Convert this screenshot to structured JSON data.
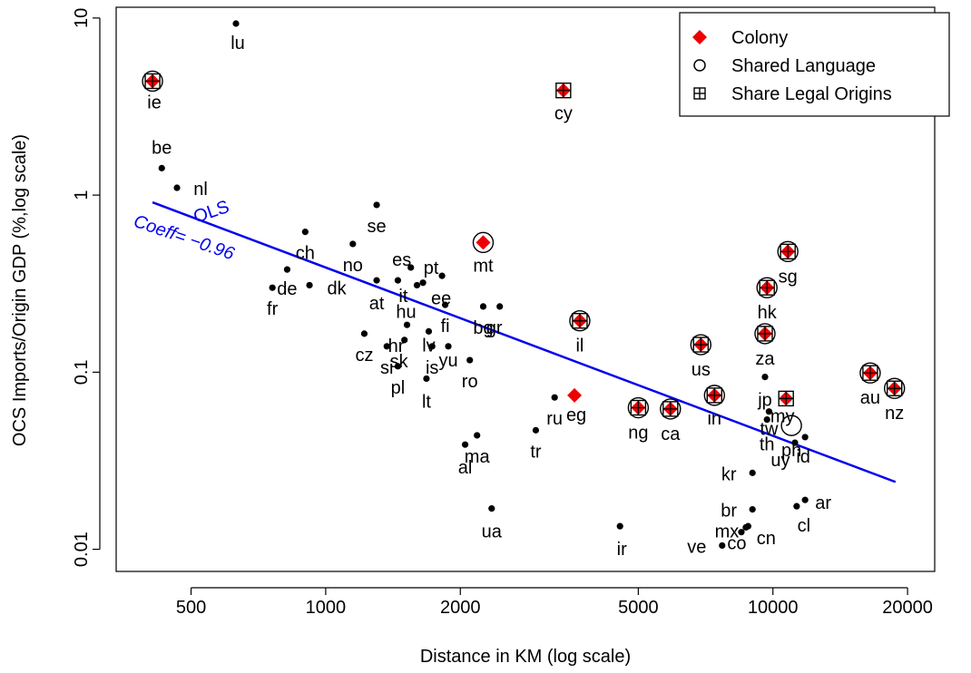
{
  "chart_data": {
    "type": "scatter",
    "title": "",
    "xlabel": "Distance in KM (log scale)",
    "ylabel": "OCS Imports/Origin GDP (%,log scale)",
    "x_scale": "log",
    "y_scale": "log",
    "xlim": [
      340,
      23000
    ],
    "ylim": [
      0.0075,
      11.5
    ],
    "x_ticks": [
      500,
      1000,
      2000,
      5000,
      10000,
      20000
    ],
    "x_tick_labels": [
      "500",
      "1000",
      "2000",
      "5000",
      "10000",
      "20000"
    ],
    "y_ticks": [
      0.01,
      0.1,
      1,
      10
    ],
    "y_tick_labels": [
      "0.01",
      "0.1",
      "1",
      "10"
    ],
    "legend": {
      "position": "top-right",
      "entries": [
        {
          "label": "Colony",
          "marker": "red-diamond"
        },
        {
          "label": "Shared Language",
          "marker": "open-circle"
        },
        {
          "label": "Share Legal Origins",
          "marker": "boxed-plus"
        }
      ]
    },
    "fit_line": {
      "label": "OLS",
      "annotation": "Coeff= −0.96",
      "color": "#0000ee",
      "points": [
        [
          410,
          0.91
        ],
        [
          18800,
          0.024
        ]
      ]
    },
    "points": [
      {
        "code": "lu",
        "x": 630,
        "y": 9.3
      },
      {
        "code": "ie",
        "x": 410,
        "y": 4.4,
        "colony": true,
        "language": true,
        "legal": true
      },
      {
        "code": "cy",
        "x": 3400,
        "y": 3.9,
        "colony": true,
        "legal": true
      },
      {
        "code": "be",
        "x": 430,
        "y": 1.42
      },
      {
        "code": "nl",
        "x": 465,
        "y": 1.1
      },
      {
        "code": "se",
        "x": 1300,
        "y": 0.88
      },
      {
        "code": "ch",
        "x": 900,
        "y": 0.62
      },
      {
        "code": "no",
        "x": 1150,
        "y": 0.53
      },
      {
        "code": "mt",
        "x": 2250,
        "y": 0.54,
        "colony": true,
        "language": true
      },
      {
        "code": "de",
        "x": 820,
        "y": 0.38
      },
      {
        "code": "fr",
        "x": 760,
        "y": 0.3
      },
      {
        "code": "dk",
        "x": 920,
        "y": 0.31
      },
      {
        "code": "at",
        "x": 1300,
        "y": 0.33
      },
      {
        "code": "es",
        "x": 1550,
        "y": 0.39
      },
      {
        "code": "pt",
        "x": 1820,
        "y": 0.35
      },
      {
        "code": "it",
        "x": 1450,
        "y": 0.33
      },
      {
        "code": "hu",
        "x": 1600,
        "y": 0.31
      },
      {
        "code": "ee",
        "x": 1650,
        "y": 0.32
      },
      {
        "code": "bg",
        "x": 2250,
        "y": 0.235
      },
      {
        "code": "gr",
        "x": 2450,
        "y": 0.235
      },
      {
        "code": "fi",
        "x": 1850,
        "y": 0.24
      },
      {
        "code": "il",
        "x": 3700,
        "y": 0.195,
        "colony": true,
        "language": true,
        "legal": true
      },
      {
        "code": "cz",
        "x": 1220,
        "y": 0.165
      },
      {
        "code": "hr",
        "x": 1520,
        "y": 0.185
      },
      {
        "code": "lv",
        "x": 1700,
        "y": 0.17
      },
      {
        "code": "si",
        "x": 1370,
        "y": 0.14
      },
      {
        "code": "sk",
        "x": 1500,
        "y": 0.152
      },
      {
        "code": "is",
        "x": 1730,
        "y": 0.14
      },
      {
        "code": "yu",
        "x": 1880,
        "y": 0.14
      },
      {
        "code": "pl",
        "x": 1450,
        "y": 0.108
      },
      {
        "code": "ro",
        "x": 2100,
        "y": 0.117
      },
      {
        "code": "lt",
        "x": 1680,
        "y": 0.092
      },
      {
        "code": "us",
        "x": 6900,
        "y": 0.143,
        "colony": true,
        "language": true,
        "legal": true
      },
      {
        "code": "za",
        "x": 9600,
        "y": 0.165,
        "colony": true,
        "language": true,
        "legal": true
      },
      {
        "code": "hk",
        "x": 9700,
        "y": 0.3,
        "colony": true,
        "language": true,
        "legal": true
      },
      {
        "code": "sg",
        "x": 10800,
        "y": 0.48,
        "colony": true,
        "language": true,
        "legal": true
      },
      {
        "code": "jp",
        "x": 9600,
        "y": 0.094
      },
      {
        "code": "in",
        "x": 7400,
        "y": 0.074,
        "colony": true,
        "language": true,
        "legal": true
      },
      {
        "code": "ng",
        "x": 5000,
        "y": 0.063,
        "colony": true,
        "language": true,
        "legal": true
      },
      {
        "code": "ca",
        "x": 5900,
        "y": 0.062,
        "colony": true,
        "language": true,
        "legal": true
      },
      {
        "code": "ru",
        "x": 3250,
        "y": 0.072
      },
      {
        "code": "eg",
        "x": 3600,
        "y": 0.074,
        "colony": true
      },
      {
        "code": "my",
        "x": 10700,
        "y": 0.071,
        "colony": true,
        "legal": true
      },
      {
        "code": "tw",
        "x": 9800,
        "y": 0.06
      },
      {
        "code": "th",
        "x": 9700,
        "y": 0.054
      },
      {
        "code": "ph",
        "x": 11000,
        "y": 0.05,
        "language": true
      },
      {
        "code": "uy",
        "x": 11200,
        "y": 0.04
      },
      {
        "code": "id",
        "x": 11800,
        "y": 0.043
      },
      {
        "code": "au",
        "x": 16500,
        "y": 0.099,
        "colony": true,
        "language": true,
        "legal": true
      },
      {
        "code": "nz",
        "x": 18700,
        "y": 0.081,
        "colony": true,
        "language": true,
        "legal": true
      },
      {
        "code": "tr",
        "x": 2950,
        "y": 0.047
      },
      {
        "code": "ma",
        "x": 2180,
        "y": 0.044
      },
      {
        "code": "al",
        "x": 2050,
        "y": 0.039
      },
      {
        "code": "kr",
        "x": 9000,
        "y": 0.027
      },
      {
        "code": "ua",
        "x": 2350,
        "y": 0.017
      },
      {
        "code": "ir",
        "x": 4550,
        "y": 0.0135
      },
      {
        "code": "br",
        "x": 9000,
        "y": 0.0168
      },
      {
        "code": "cl",
        "x": 11300,
        "y": 0.0175
      },
      {
        "code": "ar",
        "x": 11800,
        "y": 0.019
      },
      {
        "code": "mx",
        "x": 8500,
        "y": 0.0125
      },
      {
        "code": "co",
        "x": 8700,
        "y": 0.0133
      },
      {
        "code": "cn",
        "x": 8800,
        "y": 0.0135
      },
      {
        "code": "ve",
        "x": 7700,
        "y": 0.0105
      }
    ],
    "labels": [
      {
        "text": "lu",
        "x": 630,
        "y": 9.3,
        "dx": 2,
        "dy": 28
      },
      {
        "text": "ie",
        "x": 410,
        "y": 4.4,
        "dx": 2,
        "dy": 30
      },
      {
        "text": "cy",
        "x": 3400,
        "y": 3.9,
        "dx": 0,
        "dy": 32
      },
      {
        "text": "be",
        "x": 430,
        "y": 1.42,
        "dx": 0,
        "dy": -16
      },
      {
        "text": "nl",
        "x": 465,
        "y": 1.1,
        "dx": 26,
        "dy": 8
      },
      {
        "text": "se",
        "x": 1300,
        "y": 0.88,
        "dx": 0,
        "dy": 30
      },
      {
        "text": "ch",
        "x": 900,
        "y": 0.62,
        "dx": 0,
        "dy": 30
      },
      {
        "text": "no",
        "x": 1150,
        "y": 0.53,
        "dx": 0,
        "dy": 30
      },
      {
        "text": "mt",
        "x": 2250,
        "y": 0.54,
        "dx": 0,
        "dy": 32
      },
      {
        "text": "de",
        "x": 820,
        "y": 0.38,
        "dx": 0,
        "dy": 28
      },
      {
        "text": "fr",
        "x": 760,
        "y": 0.3,
        "dx": 0,
        "dy": 30
      },
      {
        "text": "dk",
        "x": 920,
        "y": 0.31,
        "dx": 30,
        "dy": 10
      },
      {
        "text": "at",
        "x": 1300,
        "y": 0.33,
        "dx": 0,
        "dy": 32
      },
      {
        "text": "es",
        "x": 1550,
        "y": 0.39,
        "dx": -10,
        "dy": -2
      },
      {
        "text": "pt",
        "x": 1820,
        "y": 0.35,
        "dx": -12,
        "dy": -2
      },
      {
        "text": "it",
        "x": 1450,
        "y": 0.33,
        "dx": 6,
        "dy": 24
      },
      {
        "text": "hu",
        "x": 1600,
        "y": 0.31,
        "dx": -12,
        "dy": 36
      },
      {
        "text": "ee",
        "x": 1650,
        "y": 0.32,
        "dx": 20,
        "dy": 24
      },
      {
        "text": "bg",
        "x": 2250,
        "y": 0.235,
        "dx": 0,
        "dy": 30
      },
      {
        "text": "gr",
        "x": 2450,
        "y": 0.235,
        "dx": -6,
        "dy": 30
      },
      {
        "text": "fi",
        "x": 1850,
        "y": 0.24,
        "dx": 0,
        "dy": 30
      },
      {
        "text": "il",
        "x": 3700,
        "y": 0.195,
        "dx": 0,
        "dy": 34
      },
      {
        "text": "cz",
        "x": 1220,
        "y": 0.165,
        "dx": 0,
        "dy": 30
      },
      {
        "text": "hr",
        "x": 1520,
        "y": 0.185,
        "dx": -12,
        "dy": 30
      },
      {
        "text": "lv",
        "x": 1700,
        "y": 0.17,
        "dx": 0,
        "dy": 22
      },
      {
        "text": "si",
        "x": 1370,
        "y": 0.14,
        "dx": 0,
        "dy": 30
      },
      {
        "text": "sk",
        "x": 1500,
        "y": 0.152,
        "dx": -6,
        "dy": 30
      },
      {
        "text": "is",
        "x": 1730,
        "y": 0.14,
        "dx": 0,
        "dy": 30
      },
      {
        "text": "yu",
        "x": 1880,
        "y": 0.14,
        "dx": 0,
        "dy": 22
      },
      {
        "text": "pl",
        "x": 1450,
        "y": 0.108,
        "dx": 0,
        "dy": 30
      },
      {
        "text": "ro",
        "x": 2100,
        "y": 0.117,
        "dx": 0,
        "dy": 30
      },
      {
        "text": "lt",
        "x": 1680,
        "y": 0.092,
        "dx": 0,
        "dy": 32
      },
      {
        "text": "us",
        "x": 6900,
        "y": 0.143,
        "dx": 0,
        "dy": 34
      },
      {
        "text": "za",
        "x": 9600,
        "y": 0.165,
        "dx": 0,
        "dy": 34
      },
      {
        "text": "hk",
        "x": 9700,
        "y": 0.3,
        "dx": 0,
        "dy": 34
      },
      {
        "text": "sg",
        "x": 10800,
        "y": 0.48,
        "dx": 0,
        "dy": 34
      },
      {
        "text": "jp",
        "x": 9600,
        "y": 0.094,
        "dx": 0,
        "dy": 32
      },
      {
        "text": "in",
        "x": 7400,
        "y": 0.074,
        "dx": 0,
        "dy": 32
      },
      {
        "text": "ng",
        "x": 5000,
        "y": 0.063,
        "dx": 0,
        "dy": 34
      },
      {
        "text": "ca",
        "x": 5900,
        "y": 0.062,
        "dx": 0,
        "dy": 34
      },
      {
        "text": "ru",
        "x": 3250,
        "y": 0.072,
        "dx": 0,
        "dy": 30
      },
      {
        "text": "eg",
        "x": 3600,
        "y": 0.074,
        "dx": 2,
        "dy": 28
      },
      {
        "text": "my",
        "x": 10700,
        "y": 0.071,
        "dx": -4,
        "dy": 26
      },
      {
        "text": "tw",
        "x": 9800,
        "y": 0.06,
        "dx": 0,
        "dy": 26
      },
      {
        "text": "th",
        "x": 9700,
        "y": 0.054,
        "dx": 0,
        "dy": 34
      },
      {
        "text": "ph",
        "x": 11000,
        "y": 0.05,
        "dx": 0,
        "dy": 34
      },
      {
        "text": "uy",
        "x": 11200,
        "y": 0.04,
        "dx": -16,
        "dy": 26
      },
      {
        "text": "id",
        "x": 11800,
        "y": 0.043,
        "dx": -2,
        "dy": 28
      },
      {
        "text": "au",
        "x": 16500,
        "y": 0.099,
        "dx": 0,
        "dy": 34
      },
      {
        "text": "nz",
        "x": 18700,
        "y": 0.081,
        "dx": 0,
        "dy": 34
      },
      {
        "text": "tr",
        "x": 2950,
        "y": 0.047,
        "dx": 0,
        "dy": 30
      },
      {
        "text": "ma",
        "x": 2180,
        "y": 0.044,
        "dx": 0,
        "dy": 30
      },
      {
        "text": "al",
        "x": 2050,
        "y": 0.039,
        "dx": 0,
        "dy": 32
      },
      {
        "text": "kr",
        "x": 9000,
        "y": 0.027,
        "dx": -26,
        "dy": 8
      },
      {
        "text": "ua",
        "x": 2350,
        "y": 0.017,
        "dx": 0,
        "dy": 32
      },
      {
        "text": "ir",
        "x": 4550,
        "y": 0.0135,
        "dx": 2,
        "dy": 32
      },
      {
        "text": "br",
        "x": 9000,
        "y": 0.0168,
        "dx": -26,
        "dy": 8
      },
      {
        "text": "cl",
        "x": 11300,
        "y": 0.0175,
        "dx": 8,
        "dy": 28
      },
      {
        "text": "ar",
        "x": 11800,
        "y": 0.019,
        "dx": 20,
        "dy": 10
      },
      {
        "text": "mx",
        "x": 8500,
        "y": 0.0125,
        "dx": -16,
        "dy": 6
      },
      {
        "text": "co",
        "x": 8700,
        "y": 0.0133,
        "dx": -10,
        "dy": 24
      },
      {
        "text": "cn",
        "x": 8800,
        "y": 0.0135,
        "dx": 20,
        "dy": 20
      },
      {
        "text": "ve",
        "x": 7700,
        "y": 0.0105,
        "dx": -28,
        "dy": 8
      }
    ]
  }
}
